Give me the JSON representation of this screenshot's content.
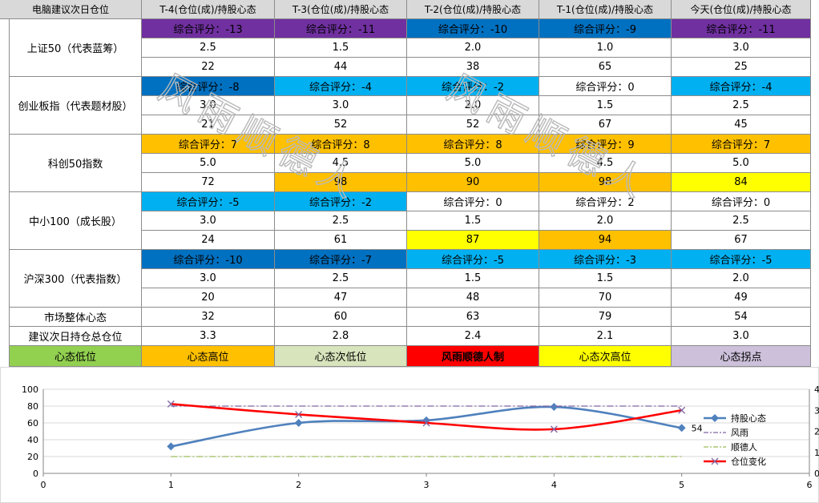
{
  "table": {
    "corner": "电脑建议次日仓位",
    "columns": [
      "T-4(仓位(成)/持股心态",
      "T-3(仓位(成)/持股心态",
      "T-2(仓位(成)/持股心态",
      "T-1(仓位(成)/持股心态",
      "今天(仓位(成)/持股心态"
    ],
    "groups": [
      {
        "label": "上证50（代表蓝筹）",
        "scores": [
          "综合评分：-13",
          "综合评分：-11",
          "综合评分：-10",
          "综合评分：-9",
          "综合评分：-11"
        ],
        "score_colors": [
          "#7030a0",
          "#7030a0",
          "#0070c0",
          "#0070c0",
          "#7030a0"
        ],
        "positions": [
          "2.5",
          "1.5",
          "2.0",
          "1.0",
          "3.0"
        ],
        "moods": [
          "22",
          "44",
          "38",
          "65",
          "25"
        ],
        "mood_colors": [
          "#ffffff",
          "#ffffff",
          "#ffffff",
          "#ffffff",
          "#ffffff"
        ]
      },
      {
        "label": "创业板指（代表题材股）",
        "scores": [
          "综合评分：-8",
          "综合评分：-4",
          "综合评分：-2",
          "综合评分：0",
          "综合评分：-4"
        ],
        "score_colors": [
          "#0070c0",
          "#00b0f0",
          "#00b0f0",
          "#ffffff",
          "#00b0f0"
        ],
        "positions": [
          "3.0",
          "3.0",
          "2.0",
          "1.5",
          "2.5"
        ],
        "moods": [
          "21",
          "52",
          "52",
          "67",
          "45"
        ],
        "mood_colors": [
          "#ffffff",
          "#ffffff",
          "#ffffff",
          "#ffffff",
          "#ffffff"
        ]
      },
      {
        "label": "科创50指数",
        "scores": [
          "综合评分：7",
          "综合评分：8",
          "综合评分：8",
          "综合评分：9",
          "综合评分：7"
        ],
        "score_colors": [
          "#ffc000",
          "#ffc000",
          "#ffc000",
          "#ffc000",
          "#ffc000"
        ],
        "positions": [
          "5.0",
          "4.5",
          "5.0",
          "4.5",
          "5.0"
        ],
        "moods": [
          "72",
          "98",
          "90",
          "98",
          "84"
        ],
        "mood_colors": [
          "#ffffff",
          "#ffc000",
          "#ffc000",
          "#ffc000",
          "#ffff00"
        ]
      },
      {
        "label": "中小100（成长股）",
        "scores": [
          "综合评分：-5",
          "综合评分：-2",
          "综合评分：0",
          "综合评分：2",
          "综合评分：0"
        ],
        "score_colors": [
          "#00b0f0",
          "#00b0f0",
          "#ffffff",
          "#ffffff",
          "#ffffff"
        ],
        "positions": [
          "3.0",
          "2.5",
          "1.5",
          "2.0",
          "2.5"
        ],
        "moods": [
          "24",
          "61",
          "87",
          "94",
          "67"
        ],
        "mood_colors": [
          "#ffffff",
          "#ffffff",
          "#ffff00",
          "#ffc000",
          "#ffffff"
        ]
      },
      {
        "label": "沪深300（代表指数）",
        "scores": [
          "综合评分：-10",
          "综合评分：-7",
          "综合评分：-5",
          "综合评分：-3",
          "综合评分：-5"
        ],
        "score_colors": [
          "#0070c0",
          "#0070c0",
          "#00b0f0",
          "#00b0f0",
          "#00b0f0"
        ],
        "positions": [
          "3.0",
          "2.5",
          "1.5",
          "1.5",
          "2.0"
        ],
        "moods": [
          "20",
          "47",
          "48",
          "70",
          "49"
        ],
        "mood_colors": [
          "#ffffff",
          "#ffffff",
          "#ffffff",
          "#ffffff",
          "#ffffff"
        ]
      }
    ],
    "market_mood": {
      "label": "市场整体心态",
      "values": [
        "32",
        "60",
        "63",
        "79",
        "54"
      ]
    },
    "total_position": {
      "label": "建议次日持仓总仓位",
      "values": [
        "3.3",
        "2.8",
        "2.4",
        "2.1",
        "3.0"
      ]
    },
    "legend": [
      {
        "text": "心态低位",
        "color": "#92d050",
        "bold": false
      },
      {
        "text": "心态高位",
        "color": "#ffc000",
        "bold": false
      },
      {
        "text": "心态次低位",
        "color": "#d8e4bc",
        "bold": false
      },
      {
        "text": "风雨顺德人制",
        "color": "#ff0000",
        "bold": true
      },
      {
        "text": "心态次高位",
        "color": "#ffff00",
        "bold": false
      },
      {
        "text": "心态拐点",
        "color": "#ccc0da",
        "bold": false
      }
    ]
  },
  "watermark": "风雨顺德人",
  "chart_data": {
    "type": "line",
    "x": [
      1,
      2,
      3,
      4,
      5
    ],
    "xlim": [
      0,
      6
    ],
    "xticks": [
      "0",
      "1",
      "2",
      "3",
      "4",
      "5",
      "6"
    ],
    "ylim": [
      0,
      100
    ],
    "yticks": [
      "0",
      "20",
      "40",
      "60",
      "80",
      "100"
    ],
    "y2ticks": [
      "0",
      "1",
      "2",
      "3",
      "4"
    ],
    "y2lim": [
      0,
      4
    ],
    "series": [
      {
        "name": "持股心态",
        "values": [
          32,
          60,
          63,
          79,
          54
        ],
        "axis": "left",
        "color": "#4f81bd",
        "style": "diamond"
      },
      {
        "name": "风雨",
        "values": [
          80,
          80,
          80,
          80,
          80
        ],
        "axis": "left",
        "color": "#8064a2",
        "style": "dashdot"
      },
      {
        "name": "顺德人",
        "values": [
          20,
          20,
          20,
          20,
          20
        ],
        "axis": "left",
        "color": "#9bbb59",
        "style": "dashdot"
      },
      {
        "name": "仓位变化",
        "values": [
          3.3,
          2.8,
          2.4,
          2.1,
          3.0
        ],
        "axis": "right",
        "color": "#ff0000",
        "style": "cross"
      }
    ],
    "data_label": "54",
    "legend_position": "right"
  }
}
